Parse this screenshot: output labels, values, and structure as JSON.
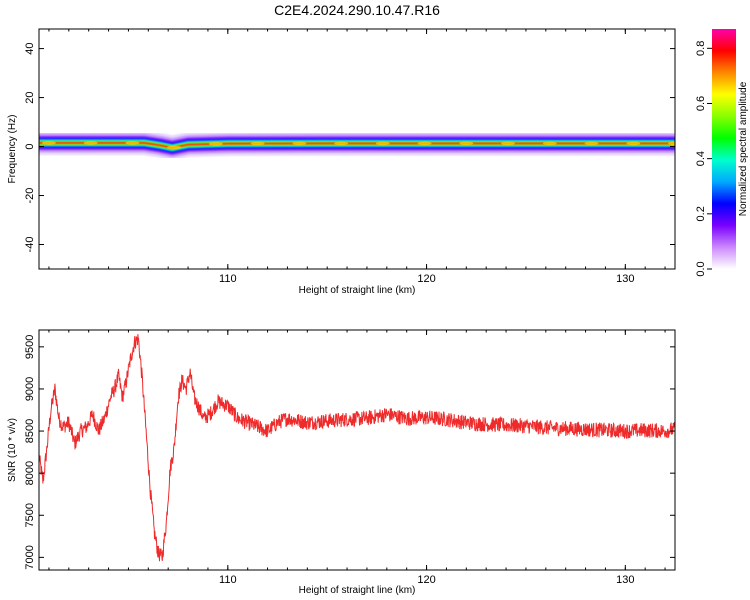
{
  "title": "C2E4.2024.290.10.47.R16",
  "chart_data": [
    {
      "type": "heatmap",
      "xlabel": "Height of straight line (km)",
      "ylabel": "Frequency (Hz)",
      "xlim": [
        100.5,
        132.5
      ],
      "ylim": [
        -50,
        48
      ],
      "x_ticks": [
        110,
        120,
        130
      ],
      "x_tick_labels": [
        "110",
        "120",
        "130"
      ],
      "y_ticks": [
        -40,
        -20,
        0,
        20,
        40
      ],
      "y_tick_labels": [
        "-40",
        "-20",
        "0",
        "20",
        "40"
      ],
      "band": {
        "center_hz": [
          [
            100.5,
            1.5
          ],
          [
            103.0,
            1.5
          ],
          [
            105.8,
            1.5
          ],
          [
            106.6,
            0.5
          ],
          [
            107.2,
            -0.5
          ],
          [
            108.0,
            0.8
          ],
          [
            110.0,
            1.2
          ],
          [
            115.0,
            1.3
          ],
          [
            120.0,
            1.3
          ],
          [
            125.0,
            1.3
          ],
          [
            132.5,
            1.3
          ]
        ],
        "core_amplitude": 0.85,
        "spread_hz": 2.5
      },
      "colorbar": {
        "label": "Normalized spectral amplitude",
        "range": [
          0,
          0.87
        ],
        "ticks": [
          0.0,
          0.2,
          0.4,
          0.6,
          0.8
        ],
        "tick_labels": [
          "0.0",
          "0.2",
          "0.4",
          "0.6",
          "0.8"
        ],
        "colormap": [
          "#ffffff",
          "#cc88ff",
          "#7a00ff",
          "#0000ff",
          "#00aaff",
          "#00ffcc",
          "#00ff00",
          "#88ff00",
          "#ffff00",
          "#ff8800",
          "#ff0000",
          "#ff00aa"
        ]
      }
    },
    {
      "type": "line",
      "xlabel": "Height of straight line (km)",
      "ylabel": "SNR (10 * v/v)",
      "xlim": [
        100.5,
        132.5
      ],
      "ylim": [
        6850,
        9700
      ],
      "x_ticks": [
        110,
        120,
        130
      ],
      "x_tick_labels": [
        "110",
        "120",
        "130"
      ],
      "y_ticks": [
        7000,
        7500,
        8000,
        8500,
        9000,
        9500
      ],
      "y_tick_labels": [
        "7000",
        "7500",
        "8000",
        "8500",
        "9000",
        "9500"
      ],
      "line_color": "#ee2a2a",
      "series": [
        {
          "x": [
            100.5,
            100.7,
            100.9,
            101.1,
            101.3,
            101.5,
            101.7,
            102.0,
            102.3,
            102.6,
            102.9,
            103.2,
            103.5,
            103.8,
            104.1,
            104.3,
            104.5,
            104.7,
            104.9,
            105.1,
            105.3,
            105.5,
            105.7,
            105.9,
            106.1,
            106.3,
            106.5,
            106.7,
            106.9,
            107.1,
            107.3,
            107.5,
            107.7,
            107.9,
            108.1,
            108.3,
            108.5,
            108.8,
            109.1,
            109.5,
            110.0,
            110.5,
            111.0,
            111.5,
            112.0,
            112.5,
            113.0,
            114.0,
            115.0,
            116.0,
            117.0,
            118.0,
            119.0,
            120.0,
            121.0,
            122.0,
            123.0,
            124.0,
            125.0,
            126.0,
            127.0,
            128.0,
            129.0,
            130.0,
            131.0,
            132.0,
            132.5
          ],
          "y": [
            8200,
            7900,
            8300,
            8750,
            9000,
            8650,
            8550,
            8600,
            8350,
            8500,
            8550,
            8700,
            8500,
            8650,
            8900,
            9000,
            9150,
            8900,
            9100,
            9350,
            9550,
            9600,
            9100,
            8450,
            7800,
            7300,
            7050,
            7000,
            7400,
            8050,
            8300,
            8900,
            9100,
            9000,
            9200,
            8900,
            8800,
            8650,
            8700,
            8850,
            8800,
            8650,
            8600,
            8550,
            8500,
            8600,
            8650,
            8600,
            8620,
            8640,
            8650,
            8700,
            8650,
            8660,
            8640,
            8600,
            8580,
            8570,
            8560,
            8540,
            8530,
            8520,
            8510,
            8500,
            8510,
            8500,
            8520
          ],
          "noise_amplitude": 90
        }
      ]
    }
  ]
}
